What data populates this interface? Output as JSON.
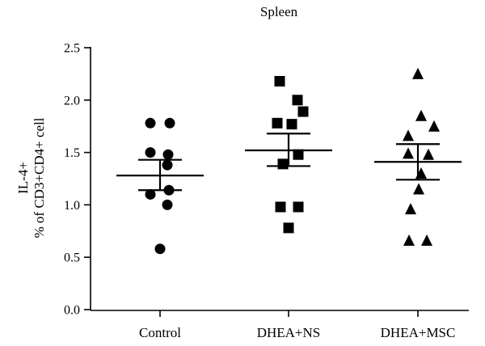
{
  "chart_data": {
    "type": "scatter",
    "title": "Spleen",
    "ylabel_line1": "IL-4+",
    "ylabel_line2": "% of CD3+CD4+ cell",
    "xlabel": "",
    "ylim": [
      0,
      2.5
    ],
    "yticks": [
      "0.0",
      "0.5",
      "1.0",
      "1.5",
      "2.0",
      "2.5"
    ],
    "yticks_values": [
      0,
      0.5,
      1.0,
      1.5,
      2.0,
      2.5
    ],
    "categories": [
      "Control",
      "DHEA+NS",
      "DHEA+MSC"
    ],
    "grid": false,
    "groups": [
      {
        "category": "Control",
        "marker": "circle",
        "points": [
          1.78,
          1.78,
          1.5,
          1.48,
          1.38,
          1.1,
          1.14,
          1.0,
          0.58
        ],
        "mean": 1.28,
        "sem_upper": 1.43,
        "sem_lower": 1.14
      },
      {
        "category": "DHEA+NS",
        "marker": "square",
        "points": [
          2.18,
          2.0,
          1.89,
          1.78,
          1.77,
          1.48,
          1.39,
          0.98,
          0.98,
          0.78
        ],
        "mean": 1.52,
        "sem_upper": 1.68,
        "sem_lower": 1.37
      },
      {
        "category": "DHEA+MSC",
        "marker": "triangle",
        "points": [
          2.25,
          1.85,
          1.75,
          1.66,
          1.49,
          1.48,
          1.3,
          1.15,
          0.96,
          0.66,
          0.66
        ],
        "mean": 1.41,
        "sem_upper": 1.58,
        "sem_lower": 1.24
      }
    ]
  }
}
